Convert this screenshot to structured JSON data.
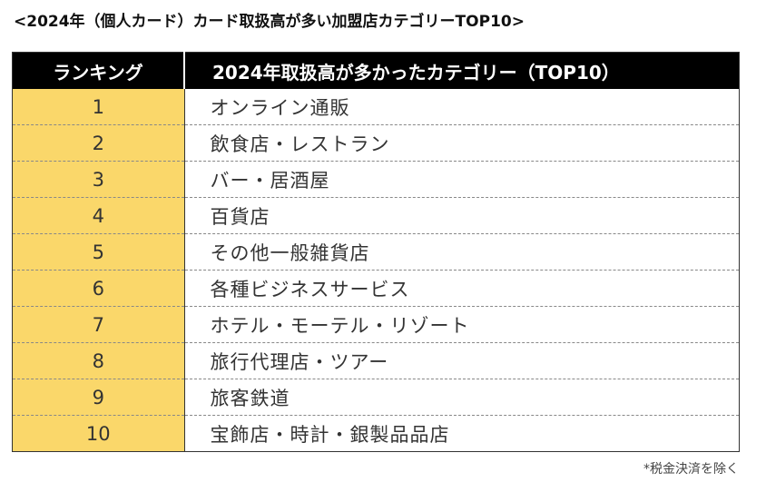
{
  "title": "<2024年（個人カード）カード取扱高が多い加盟店カテゴリーTOP10>",
  "table": {
    "headers": {
      "rank": "ランキング",
      "category": "2024年取扱高が多かったカテゴリー（TOP10）"
    },
    "rows": [
      {
        "rank": "1",
        "category": "オンライン通販"
      },
      {
        "rank": "2",
        "category": "飲食店・レストラン"
      },
      {
        "rank": "3",
        "category": "バー・居酒屋"
      },
      {
        "rank": "4",
        "category": "百貨店"
      },
      {
        "rank": "5",
        "category": "その他一般雑貨店"
      },
      {
        "rank": "6",
        "category": "各種ビジネスサービス"
      },
      {
        "rank": "7",
        "category": "ホテル・モーテル・リゾート"
      },
      {
        "rank": "8",
        "category": "旅行代理店・ツアー"
      },
      {
        "rank": "9",
        "category": "旅客鉄道"
      },
      {
        "rank": "10",
        "category": "宝飾店・時計・銀製品品店"
      }
    ]
  },
  "footnote": "*税金決済を除く",
  "colors": {
    "header_background": "#000000",
    "header_text": "#ffffff",
    "rank_column_background": "#fad76a",
    "row_divider": "#888888"
  }
}
